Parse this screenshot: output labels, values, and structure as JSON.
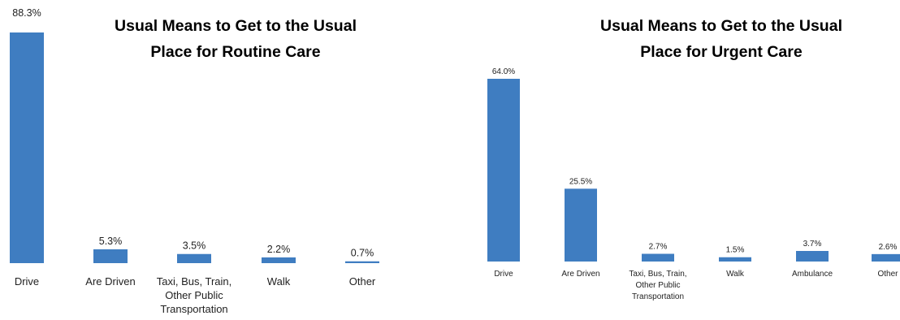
{
  "charts_meta": {
    "bar_color": "#3F7DC1"
  },
  "chart_data": [
    {
      "type": "bar",
      "title_lines": [
        "Usual Means to Get to the Usual",
        "Place for Routine Care"
      ],
      "categories": [
        [
          "Drive"
        ],
        [
          "Are Driven"
        ],
        [
          "Taxi, Bus, Train,",
          "Other Public",
          "Transportation"
        ],
        [
          "Walk"
        ],
        [
          "Other"
        ]
      ],
      "values": [
        88.3,
        5.3,
        3.5,
        2.2,
        0.7
      ],
      "labels": [
        "88.3%",
        "5.3%",
        "3.5%",
        "2.2%",
        "0.7%"
      ],
      "ylim": [
        0,
        88.3
      ],
      "xlabel": "",
      "ylabel": "",
      "grid": false
    },
    {
      "type": "bar",
      "title_lines": [
        "Usual Means to Get to the Usual",
        "Place for Urgent Care"
      ],
      "categories": [
        [
          "Drive"
        ],
        [
          "Are Driven"
        ],
        [
          "Taxi, Bus, Train,",
          "Other Public",
          "Transportation"
        ],
        [
          "Walk"
        ],
        [
          "Ambulance"
        ],
        [
          "Other"
        ]
      ],
      "values": [
        64.0,
        25.5,
        2.7,
        1.5,
        3.7,
        2.6
      ],
      "labels": [
        "64.0%",
        "25.5%",
        "2.7%",
        "1.5%",
        "3.7%",
        "2.6%"
      ],
      "ylim": [
        0,
        64.0
      ],
      "xlabel": "",
      "ylabel": "",
      "grid": false
    }
  ]
}
